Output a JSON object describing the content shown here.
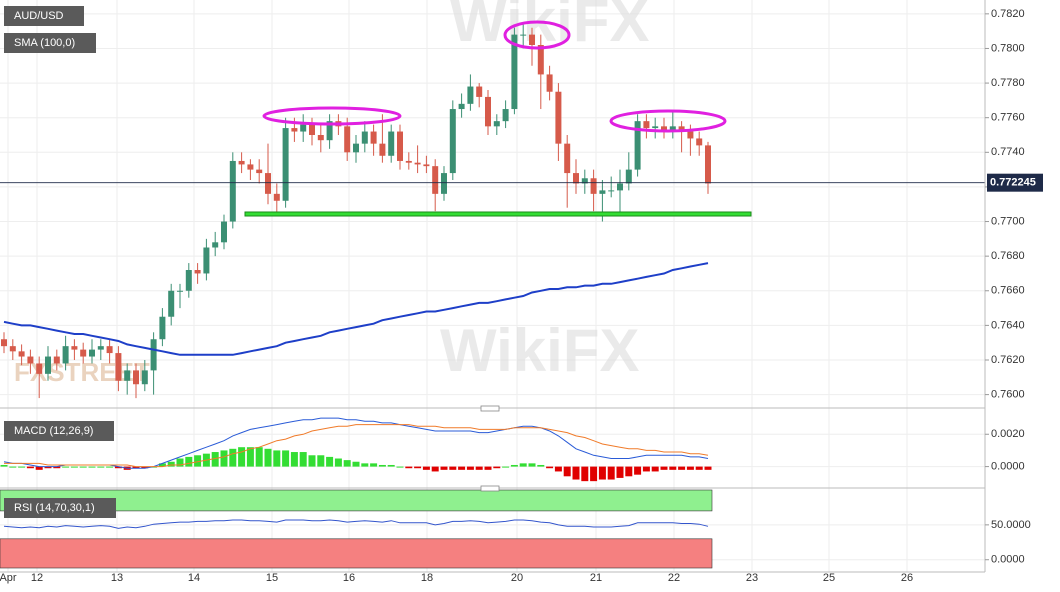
{
  "chart_data": {
    "type": "candlestick",
    "title": "AUD/USD",
    "watermark": "WikiFX",
    "logo": "FXSTREET",
    "up_color": "#3b8f73",
    "down_color": "#d65a4a",
    "x_labels": [
      "Apr",
      "12",
      "13",
      "14",
      "15",
      "16",
      "18",
      "20",
      "21",
      "22",
      "23",
      "25",
      "26"
    ],
    "ohlc": [
      [
        0.7632,
        0.7636,
        0.7624,
        0.7628
      ],
      [
        0.7628,
        0.7632,
        0.762,
        0.7625
      ],
      [
        0.7625,
        0.7629,
        0.7617,
        0.7622
      ],
      [
        0.7622,
        0.7626,
        0.7612,
        0.7618
      ],
      [
        0.7618,
        0.7622,
        0.7598,
        0.7612
      ],
      [
        0.7612,
        0.7628,
        0.7608,
        0.7622
      ],
      [
        0.7622,
        0.7626,
        0.7614,
        0.7618
      ],
      [
        0.7618,
        0.7634,
        0.7614,
        0.7628
      ],
      [
        0.7628,
        0.7632,
        0.762,
        0.7626
      ],
      [
        0.7626,
        0.763,
        0.7618,
        0.7622
      ],
      [
        0.7622,
        0.7632,
        0.7618,
        0.7626
      ],
      [
        0.7626,
        0.7632,
        0.762,
        0.7628
      ],
      [
        0.7628,
        0.7632,
        0.7618,
        0.7624
      ],
      [
        0.7624,
        0.7628,
        0.7602,
        0.7608
      ],
      [
        0.7608,
        0.7618,
        0.76,
        0.7614
      ],
      [
        0.7614,
        0.7618,
        0.7598,
        0.7606
      ],
      [
        0.7606,
        0.762,
        0.7602,
        0.7614
      ],
      [
        0.7614,
        0.7636,
        0.76,
        0.7632
      ],
      [
        0.7632,
        0.765,
        0.7628,
        0.7645
      ],
      [
        0.7645,
        0.7664,
        0.764,
        0.766
      ],
      [
        0.766,
        0.7664,
        0.765,
        0.766
      ],
      [
        0.766,
        0.7676,
        0.7656,
        0.7672
      ],
      [
        0.7672,
        0.7676,
        0.7664,
        0.767
      ],
      [
        0.767,
        0.769,
        0.7666,
        0.7685
      ],
      [
        0.7685,
        0.7694,
        0.768,
        0.7688
      ],
      [
        0.7688,
        0.7704,
        0.7684,
        0.77
      ],
      [
        0.77,
        0.774,
        0.7696,
        0.7735
      ],
      [
        0.7735,
        0.774,
        0.7728,
        0.7733
      ],
      [
        0.7733,
        0.7736,
        0.7724,
        0.773
      ],
      [
        0.773,
        0.7736,
        0.7722,
        0.7728
      ],
      [
        0.7728,
        0.7745,
        0.771,
        0.7716
      ],
      [
        0.7716,
        0.7722,
        0.7705,
        0.7712
      ],
      [
        0.7712,
        0.776,
        0.7708,
        0.7754
      ],
      [
        0.7754,
        0.776,
        0.7746,
        0.7752
      ],
      [
        0.7752,
        0.7762,
        0.7746,
        0.7756
      ],
      [
        0.7756,
        0.776,
        0.7744,
        0.775
      ],
      [
        0.775,
        0.7756,
        0.774,
        0.7747
      ],
      [
        0.7747,
        0.7762,
        0.7742,
        0.7758
      ],
      [
        0.7758,
        0.7762,
        0.775,
        0.7755
      ],
      [
        0.7755,
        0.776,
        0.7735,
        0.774
      ],
      [
        0.774,
        0.775,
        0.7734,
        0.7745
      ],
      [
        0.7745,
        0.7758,
        0.774,
        0.7752
      ],
      [
        0.7752,
        0.7756,
        0.7738,
        0.7745
      ],
      [
        0.7745,
        0.7762,
        0.7734,
        0.7738
      ],
      [
        0.7738,
        0.7756,
        0.7734,
        0.7752
      ],
      [
        0.7752,
        0.7756,
        0.773,
        0.7735
      ],
      [
        0.7735,
        0.774,
        0.773,
        0.7734
      ],
      [
        0.7734,
        0.7744,
        0.7728,
        0.7733
      ],
      [
        0.7733,
        0.7738,
        0.7728,
        0.7732
      ],
      [
        0.7732,
        0.7736,
        0.7706,
        0.7716
      ],
      [
        0.7716,
        0.7732,
        0.7712,
        0.7728
      ],
      [
        0.7728,
        0.777,
        0.7724,
        0.7765
      ],
      [
        0.7765,
        0.7774,
        0.776,
        0.7768
      ],
      [
        0.7768,
        0.7785,
        0.7764,
        0.7778
      ],
      [
        0.7778,
        0.778,
        0.7766,
        0.7772
      ],
      [
        0.7772,
        0.7776,
        0.775,
        0.7755
      ],
      [
        0.7755,
        0.7762,
        0.775,
        0.7758
      ],
      [
        0.7758,
        0.777,
        0.7754,
        0.7765
      ],
      [
        0.7765,
        0.7812,
        0.7762,
        0.7808
      ],
      [
        0.7808,
        0.7815,
        0.78,
        0.7808
      ],
      [
        0.7808,
        0.7812,
        0.779,
        0.7802
      ],
      [
        0.7802,
        0.7808,
        0.7765,
        0.7785
      ],
      [
        0.7785,
        0.779,
        0.777,
        0.7775
      ],
      [
        0.7775,
        0.778,
        0.7735,
        0.7745
      ],
      [
        0.7745,
        0.775,
        0.7708,
        0.7728
      ],
      [
        0.7728,
        0.7736,
        0.7716,
        0.7722
      ],
      [
        0.7722,
        0.773,
        0.7716,
        0.7725
      ],
      [
        0.7725,
        0.773,
        0.7706,
        0.7716
      ],
      [
        0.7716,
        0.7724,
        0.77,
        0.7718
      ],
      [
        0.7718,
        0.7726,
        0.7714,
        0.7718
      ],
      [
        0.7718,
        0.773,
        0.7705,
        0.7722
      ],
      [
        0.7722,
        0.774,
        0.7718,
        0.773
      ],
      [
        0.773,
        0.7762,
        0.7726,
        0.7758
      ],
      [
        0.7758,
        0.7762,
        0.7748,
        0.7754
      ],
      [
        0.7754,
        0.776,
        0.7748,
        0.7755
      ],
      [
        0.7755,
        0.776,
        0.7748,
        0.7753
      ],
      [
        0.7753,
        0.7764,
        0.7748,
        0.7755
      ],
      [
        0.7755,
        0.7758,
        0.774,
        0.7752
      ],
      [
        0.7752,
        0.7756,
        0.7738,
        0.7748
      ],
      [
        0.7748,
        0.7752,
        0.7738,
        0.7744
      ],
      [
        0.7744,
        0.7746,
        0.7716,
        0.7722
      ]
    ],
    "sma": {
      "name": "SMA (100,0)",
      "color": "#1e3fc8",
      "values": [
        0.7642,
        0.7641,
        0.764,
        0.764,
        0.7639,
        0.7638,
        0.7637,
        0.7636,
        0.7635,
        0.7635,
        0.7634,
        0.7633,
        0.7632,
        0.7631,
        0.7629,
        0.7628,
        0.7627,
        0.7626,
        0.7625,
        0.7624,
        0.7623,
        0.7623,
        0.7623,
        0.7623,
        0.7623,
        0.7623,
        0.7623,
        0.7624,
        0.7625,
        0.7626,
        0.7627,
        0.7628,
        0.763,
        0.7631,
        0.7632,
        0.7633,
        0.7634,
        0.7636,
        0.7637,
        0.7638,
        0.7639,
        0.764,
        0.7641,
        0.7643,
        0.7644,
        0.7645,
        0.7646,
        0.7647,
        0.7648,
        0.7648,
        0.7649,
        0.765,
        0.7651,
        0.7652,
        0.7653,
        0.7653,
        0.7654,
        0.7655,
        0.7656,
        0.7657,
        0.7659,
        0.766,
        0.7661,
        0.7661,
        0.7662,
        0.7662,
        0.7663,
        0.7663,
        0.7664,
        0.7664,
        0.7665,
        0.7666,
        0.7667,
        0.7668,
        0.7669,
        0.767,
        0.7672,
        0.7673,
        0.7674,
        0.7675,
        0.7676
      ]
    },
    "last_price": 0.772245,
    "ylim": [
      0.7594,
      0.7828
    ],
    "yticks": [
      {
        "value": 0.76,
        "label": "0.7600"
      },
      {
        "value": 0.762,
        "label": "0.7620"
      },
      {
        "value": 0.764,
        "label": "0.7640"
      },
      {
        "value": 0.766,
        "label": "0.7660"
      },
      {
        "value": 0.768,
        "label": "0.7680"
      },
      {
        "value": 0.77,
        "label": "0.7700"
      },
      {
        "value": 0.772,
        "label": "0.7720"
      },
      {
        "value": 0.774,
        "label": "0.7740"
      },
      {
        "value": 0.776,
        "label": "0.7760"
      },
      {
        "value": 0.778,
        "label": "0.7780"
      },
      {
        "value": 0.78,
        "label": "0.7800"
      },
      {
        "value": 0.782,
        "label": "0.7820"
      }
    ],
    "macd": {
      "name": "MACD (12,26,9)",
      "macd_color": "#2a5bd7",
      "signal_color": "#f07b2a",
      "positive_color": "#33dd33",
      "negative_color": "#e00000",
      "ylim": [
        -0.0012,
        0.0035
      ],
      "yticks": [
        {
          "value": 0,
          "label": "0.0000"
        },
        {
          "value": 0.002,
          "label": "0.0020"
        }
      ],
      "macd": [
        0.0003,
        0.0002,
        0.0002,
        0.0001,
        0,
        0,
        0,
        0.0001,
        0.0001,
        0.0001,
        0.0001,
        0.0001,
        0.0001,
        0,
        -0.0001,
        -0.0001,
        -0.0001,
        0,
        0.0002,
        0.0004,
        0.0006,
        0.0008,
        0.001,
        0.0012,
        0.0014,
        0.0016,
        0.0019,
        0.0021,
        0.0023,
        0.0024,
        0.0025,
        0.0026,
        0.0027,
        0.0028,
        0.0029,
        0.0029,
        0.003,
        0.003,
        0.003,
        0.0029,
        0.0029,
        0.0028,
        0.0028,
        0.0027,
        0.0027,
        0.0026,
        0.0025,
        0.0024,
        0.0023,
        0.0022,
        0.0022,
        0.0022,
        0.0022,
        0.0022,
        0.0021,
        0.0021,
        0.0022,
        0.0023,
        0.0024,
        0.0025,
        0.0025,
        0.0024,
        0.0022,
        0.0019,
        0.0015,
        0.0011,
        0.0009,
        0.0007,
        0.0006,
        0.0005,
        0.0005,
        0.0005,
        0.0006,
        0.0007,
        0.0007,
        0.0007,
        0.0007,
        0.0007,
        0.0006,
        0.0006,
        0.0005
      ],
      "signal": [
        0.0002,
        0.0002,
        0.0002,
        0.0002,
        0.0002,
        0.0001,
        0.0001,
        0.0001,
        0.0001,
        0.0001,
        0.0001,
        0.0001,
        0.0001,
        0.0001,
        0.0001,
        0,
        0,
        0,
        0,
        0.0001,
        0.0001,
        0.0002,
        0.0003,
        0.0004,
        0.0005,
        0.0006,
        0.0008,
        0.0009,
        0.0011,
        0.0012,
        0.0014,
        0.0016,
        0.0017,
        0.0019,
        0.002,
        0.0022,
        0.0023,
        0.0024,
        0.0025,
        0.0025,
        0.0026,
        0.0026,
        0.0026,
        0.0026,
        0.0026,
        0.0026,
        0.0026,
        0.0025,
        0.0025,
        0.0025,
        0.0024,
        0.0024,
        0.0024,
        0.0024,
        0.0023,
        0.0023,
        0.0023,
        0.0023,
        0.0024,
        0.0024,
        0.0024,
        0.0024,
        0.0023,
        0.0022,
        0.0021,
        0.0019,
        0.0018,
        0.0016,
        0.0014,
        0.0013,
        0.0012,
        0.0011,
        0.0011,
        0.001,
        0.001,
        0.0009,
        0.0009,
        0.0009,
        0.0008,
        0.0008,
        0.0007
      ],
      "histogram": [
        0.0001,
        0,
        0,
        -0.0001,
        -0.0002,
        -0.0001,
        -0.0001,
        0,
        0,
        0,
        0,
        0,
        0,
        -0.0001,
        -0.0002,
        -0.0001,
        -0.0001,
        0,
        0.0002,
        0.0003,
        0.0005,
        0.0006,
        0.0007,
        0.0008,
        0.0009,
        0.001,
        0.0011,
        0.0012,
        0.0012,
        0.0012,
        0.0011,
        0.001,
        0.001,
        0.0009,
        0.0009,
        0.0007,
        0.0007,
        0.0006,
        0.0005,
        0.0004,
        0.0003,
        0.0002,
        0.0002,
        0.0001,
        0.0001,
        0,
        -0.0001,
        -0.0001,
        -0.0002,
        -0.0003,
        -0.0002,
        -0.0002,
        -0.0002,
        -0.0002,
        -0.0002,
        -0.0002,
        -0.0001,
        0,
        0.0001,
        0.0002,
        0.0002,
        0.0001,
        -0.0001,
        -0.0003,
        -0.0006,
        -0.0008,
        -0.0009,
        -0.0009,
        -0.0008,
        -0.0008,
        -0.0007,
        -0.0006,
        -0.0005,
        -0.0003,
        -0.0003,
        -0.0002,
        -0.0002,
        -0.0002,
        -0.0002,
        -0.0002,
        -0.0002
      ]
    },
    "rsi": {
      "name": "RSI (14,70,30,1)",
      "color": "#3355cc",
      "overbought": 70,
      "oversold": 30,
      "ylim": [
        -17.6,
        100
      ],
      "yticks": [
        {
          "value": 0,
          "label": "0.0000"
        },
        {
          "value": 50,
          "label": "50.0000"
        }
      ],
      "values": [
        48,
        47,
        46,
        47,
        46,
        48,
        47,
        49,
        48,
        47,
        48,
        49,
        48,
        45,
        47,
        46,
        48,
        51,
        52,
        53,
        54,
        54,
        55,
        55,
        56,
        56,
        57,
        57,
        56,
        56,
        55,
        54,
        57,
        57,
        57,
        56,
        56,
        57,
        56,
        54,
        55,
        56,
        55,
        54,
        56,
        53,
        53,
        53,
        53,
        50,
        52,
        55,
        55,
        56,
        55,
        53,
        54,
        55,
        57,
        57,
        56,
        54,
        53,
        50,
        48,
        48,
        48,
        47,
        47,
        47,
        48,
        49,
        53,
        53,
        53,
        53,
        53,
        52,
        52,
        51,
        48
      ]
    }
  }
}
